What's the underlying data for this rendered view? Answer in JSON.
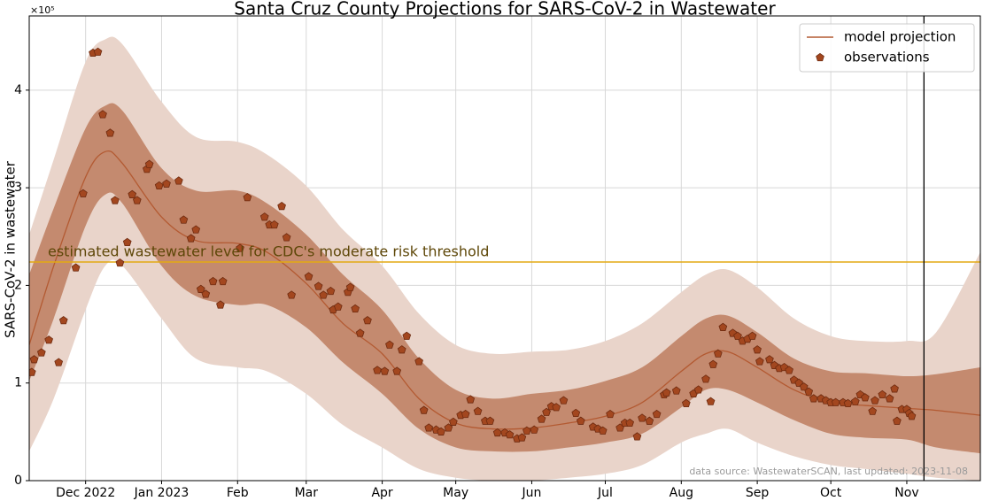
{
  "chart_data": {
    "type": "line",
    "title": "Santa Cruz County Projections for SARS-CoV-2 in Wastewater",
    "ylabel": "SARS-CoV-2 in wastewater",
    "y_multiplier": "×10⁵",
    "xlim": [
      "2022-11-08",
      "2023-12-01"
    ],
    "xticks": [
      {
        "value": "2022-12-01",
        "label": "Dec 2022"
      },
      {
        "value": "2023-01-01",
        "label": "Jan 2023"
      },
      {
        "value": "2023-02-01",
        "label": "Feb"
      },
      {
        "value": "2023-03-01",
        "label": "Mar"
      },
      {
        "value": "2023-04-01",
        "label": "Apr"
      },
      {
        "value": "2023-05-01",
        "label": "May"
      },
      {
        "value": "2023-06-01",
        "label": "Jun"
      },
      {
        "value": "2023-07-01",
        "label": "Jul"
      },
      {
        "value": "2023-08-01",
        "label": "Aug"
      },
      {
        "value": "2023-09-01",
        "label": "Sep"
      },
      {
        "value": "2023-10-01",
        "label": "Oct"
      },
      {
        "value": "2023-11-01",
        "label": "Nov"
      }
    ],
    "ylim": [
      0,
      4.76
    ],
    "yticks": [
      0,
      1,
      2,
      3,
      4
    ],
    "grid": true,
    "legend": "upper right",
    "model": {
      "name": "model projection",
      "color": "#b35a32",
      "inner_color": "#c48a6f",
      "outer_color": "#e9d4ca",
      "x": [
        "2022-11-08",
        "2022-11-18",
        "2022-12-01",
        "2022-12-09",
        "2022-12-16",
        "2023-01-01",
        "2023-01-15",
        "2023-02-01",
        "2023-02-13",
        "2023-03-01",
        "2023-03-16",
        "2023-04-01",
        "2023-04-16",
        "2023-05-01",
        "2023-05-16",
        "2023-06-01",
        "2023-06-16",
        "2023-07-01",
        "2023-07-16",
        "2023-08-01",
        "2023-08-11",
        "2023-08-20",
        "2023-09-01",
        "2023-09-16",
        "2023-10-01",
        "2023-10-15",
        "2023-11-01",
        "2023-11-13",
        "2023-12-01"
      ],
      "values": [
        1.39,
        2.2,
        3.11,
        3.37,
        3.25,
        2.7,
        2.46,
        2.43,
        2.34,
        2.02,
        1.61,
        1.3,
        0.84,
        0.59,
        0.53,
        0.54,
        0.59,
        0.66,
        0.8,
        1.12,
        1.3,
        1.32,
        1.16,
        0.93,
        0.8,
        0.77,
        0.74,
        0.72,
        0.67
      ],
      "inner_upper": [
        2.11,
        2.79,
        3.61,
        3.84,
        3.79,
        3.2,
        2.97,
        2.97,
        2.84,
        2.52,
        2.11,
        1.75,
        1.25,
        0.93,
        0.84,
        0.89,
        0.93,
        1.02,
        1.16,
        1.48,
        1.66,
        1.69,
        1.52,
        1.25,
        1.12,
        1.1,
        1.07,
        1.09,
        1.16
      ],
      "inner_lower": [
        1.02,
        1.66,
        2.61,
        2.93,
        2.84,
        2.2,
        1.89,
        1.8,
        1.8,
        1.57,
        1.21,
        0.89,
        0.53,
        0.34,
        0.3,
        0.3,
        0.34,
        0.39,
        0.48,
        0.75,
        0.93,
        0.93,
        0.8,
        0.62,
        0.48,
        0.44,
        0.42,
        0.34,
        0.28
      ],
      "outer_upper": [
        2.52,
        3.29,
        4.29,
        4.52,
        4.47,
        3.88,
        3.52,
        3.47,
        3.34,
        3.02,
        2.57,
        2.2,
        1.71,
        1.39,
        1.3,
        1.32,
        1.34,
        1.43,
        1.61,
        1.93,
        2.11,
        2.16,
        1.98,
        1.66,
        1.48,
        1.43,
        1.43,
        1.52,
        2.34
      ],
      "outer_lower": [
        0.3,
        0.84,
        1.75,
        2.2,
        2.2,
        1.66,
        1.25,
        1.16,
        1.12,
        0.89,
        0.57,
        0.34,
        0.12,
        0.03,
        0,
        0,
        0.03,
        0.07,
        0.16,
        0.39,
        0.48,
        0.53,
        0.39,
        0.25,
        0.16,
        0.12,
        0.07,
        0.03,
        0
      ]
    },
    "observations": {
      "name": "observations",
      "color": "#a3471f",
      "edge_color": "#6e2b10",
      "x": [
        "2022-11-09",
        "2022-11-10",
        "2022-11-13",
        "2022-11-16",
        "2022-11-20",
        "2022-11-22",
        "2022-11-27",
        "2022-11-30",
        "2022-12-04",
        "2022-12-06",
        "2022-12-08",
        "2022-12-11",
        "2022-12-13",
        "2022-12-15",
        "2022-12-18",
        "2022-12-20",
        "2022-12-22",
        "2022-12-26",
        "2022-12-27",
        "2022-12-31",
        "2023-01-03",
        "2023-01-08",
        "2023-01-10",
        "2023-01-13",
        "2023-01-15",
        "2023-01-17",
        "2023-01-19",
        "2023-01-22",
        "2023-01-25",
        "2023-01-26",
        "2023-02-02",
        "2023-02-05",
        "2023-02-12",
        "2023-02-14",
        "2023-02-16",
        "2023-02-19",
        "2023-02-21",
        "2023-02-23",
        "2023-03-02",
        "2023-03-06",
        "2023-03-08",
        "2023-03-11",
        "2023-03-12",
        "2023-03-14",
        "2023-03-18",
        "2023-03-19",
        "2023-03-21",
        "2023-03-23",
        "2023-03-26",
        "2023-03-30",
        "2023-04-02",
        "2023-04-04",
        "2023-04-07",
        "2023-04-09",
        "2023-04-11",
        "2023-04-16",
        "2023-04-18",
        "2023-04-20",
        "2023-04-23",
        "2023-04-25",
        "2023-04-28",
        "2023-04-30",
        "2023-05-03",
        "2023-05-05",
        "2023-05-07",
        "2023-05-10",
        "2023-05-13",
        "2023-05-15",
        "2023-05-18",
        "2023-05-21",
        "2023-05-23",
        "2023-05-26",
        "2023-05-28",
        "2023-05-30",
        "2023-06-02",
        "2023-06-05",
        "2023-06-07",
        "2023-06-09",
        "2023-06-11",
        "2023-06-14",
        "2023-06-19",
        "2023-06-21",
        "2023-06-26",
        "2023-06-28",
        "2023-06-30",
        "2023-07-03",
        "2023-07-07",
        "2023-07-09",
        "2023-07-11",
        "2023-07-14",
        "2023-07-16",
        "2023-07-19",
        "2023-07-22",
        "2023-07-25",
        "2023-07-26",
        "2023-07-30",
        "2023-08-03",
        "2023-08-06",
        "2023-08-08",
        "2023-08-11",
        "2023-08-13",
        "2023-08-14",
        "2023-08-16",
        "2023-08-18",
        "2023-08-22",
        "2023-08-24",
        "2023-08-26",
        "2023-08-28",
        "2023-08-30",
        "2023-09-01",
        "2023-09-02",
        "2023-09-06",
        "2023-09-08",
        "2023-09-10",
        "2023-09-12",
        "2023-09-14",
        "2023-09-16",
        "2023-09-18",
        "2023-09-20",
        "2023-09-22",
        "2023-09-24",
        "2023-09-27",
        "2023-09-29",
        "2023-10-01",
        "2023-10-03",
        "2023-10-06",
        "2023-10-08",
        "2023-10-11",
        "2023-10-13",
        "2023-10-15",
        "2023-10-18",
        "2023-10-19",
        "2023-10-22",
        "2023-10-25",
        "2023-10-27",
        "2023-10-28",
        "2023-10-30",
        "2023-11-01",
        "2023-11-02",
        "2023-11-03"
      ],
      "values": [
        1.11,
        1.24,
        1.31,
        1.44,
        1.21,
        1.64,
        2.18,
        2.94,
        4.38,
        4.39,
        3.75,
        3.56,
        2.87,
        2.23,
        2.44,
        2.93,
        2.87,
        3.19,
        3.24,
        3.02,
        3.04,
        3.07,
        2.67,
        2.48,
        2.57,
        1.96,
        1.91,
        2.04,
        1.8,
        2.04,
        2.38,
        2.9,
        2.7,
        2.62,
        2.62,
        2.81,
        2.49,
        1.9,
        2.09,
        1.99,
        1.9,
        1.94,
        1.75,
        1.78,
        1.93,
        1.98,
        1.76,
        1.51,
        1.64,
        1.13,
        1.12,
        1.39,
        1.12,
        1.34,
        1.48,
        1.22,
        0.72,
        0.54,
        0.52,
        0.5,
        0.54,
        0.6,
        0.67,
        0.68,
        0.83,
        0.71,
        0.61,
        0.61,
        0.49,
        0.49,
        0.47,
        0.43,
        0.44,
        0.51,
        0.52,
        0.63,
        0.7,
        0.76,
        0.75,
        0.82,
        0.69,
        0.61,
        0.55,
        0.53,
        0.51,
        0.68,
        0.54,
        0.59,
        0.59,
        0.45,
        0.64,
        0.61,
        0.68,
        0.88,
        0.9,
        0.92,
        0.79,
        0.89,
        0.93,
        1.04,
        0.81,
        1.19,
        1.3,
        1.57,
        1.51,
        1.48,
        1.43,
        1.45,
        1.48,
        1.34,
        1.22,
        1.24,
        1.18,
        1.15,
        1.16,
        1.13,
        1.03,
        1.0,
        0.96,
        0.91,
        0.84,
        0.84,
        0.82,
        0.8,
        0.8,
        0.8,
        0.79,
        0.81,
        0.88,
        0.85,
        0.71,
        0.82,
        0.88,
        0.84,
        0.94,
        0.61,
        0.73,
        0.73,
        0.69,
        0.66
      ]
    },
    "threshold": {
      "value": 2.24,
      "label": "estimated wastewater level for CDC's moderate risk threshold",
      "color": "#e3a912",
      "text_color": "#5e4708"
    },
    "vline_x": "2023-11-08",
    "source_note": "data source: WastewaterSCAN, last updated: 2023-11-08"
  }
}
